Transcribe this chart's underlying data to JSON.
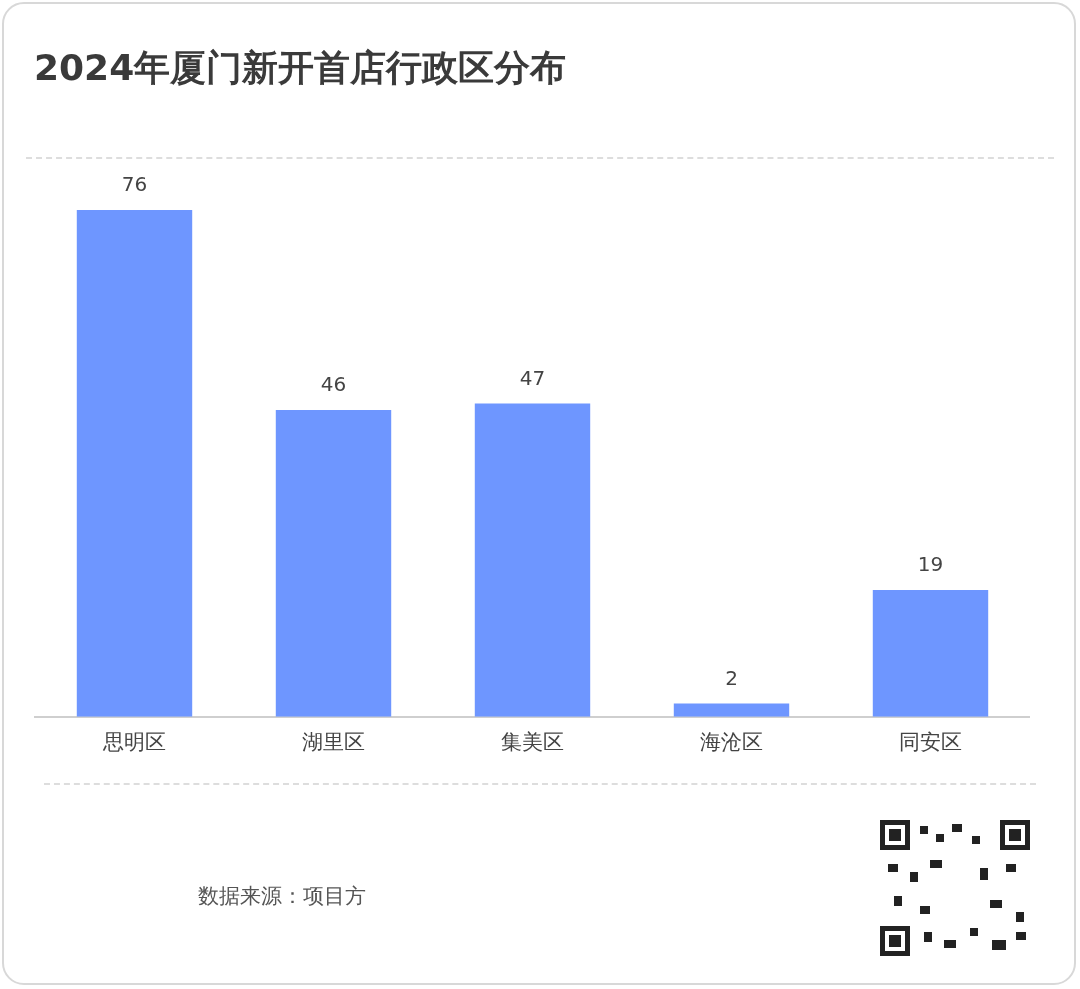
{
  "chart_data": {
    "type": "bar",
    "title": "2024年厦门新开首店行政区分布",
    "categories": [
      "思明区",
      "湖里区",
      "集美区",
      "海沧区",
      "同安区"
    ],
    "values": [
      76,
      46,
      47,
      2,
      19
    ],
    "color": "#6e96ff",
    "data_labels": true,
    "annotations": [
      "数据来源：项目方"
    ]
  }
}
